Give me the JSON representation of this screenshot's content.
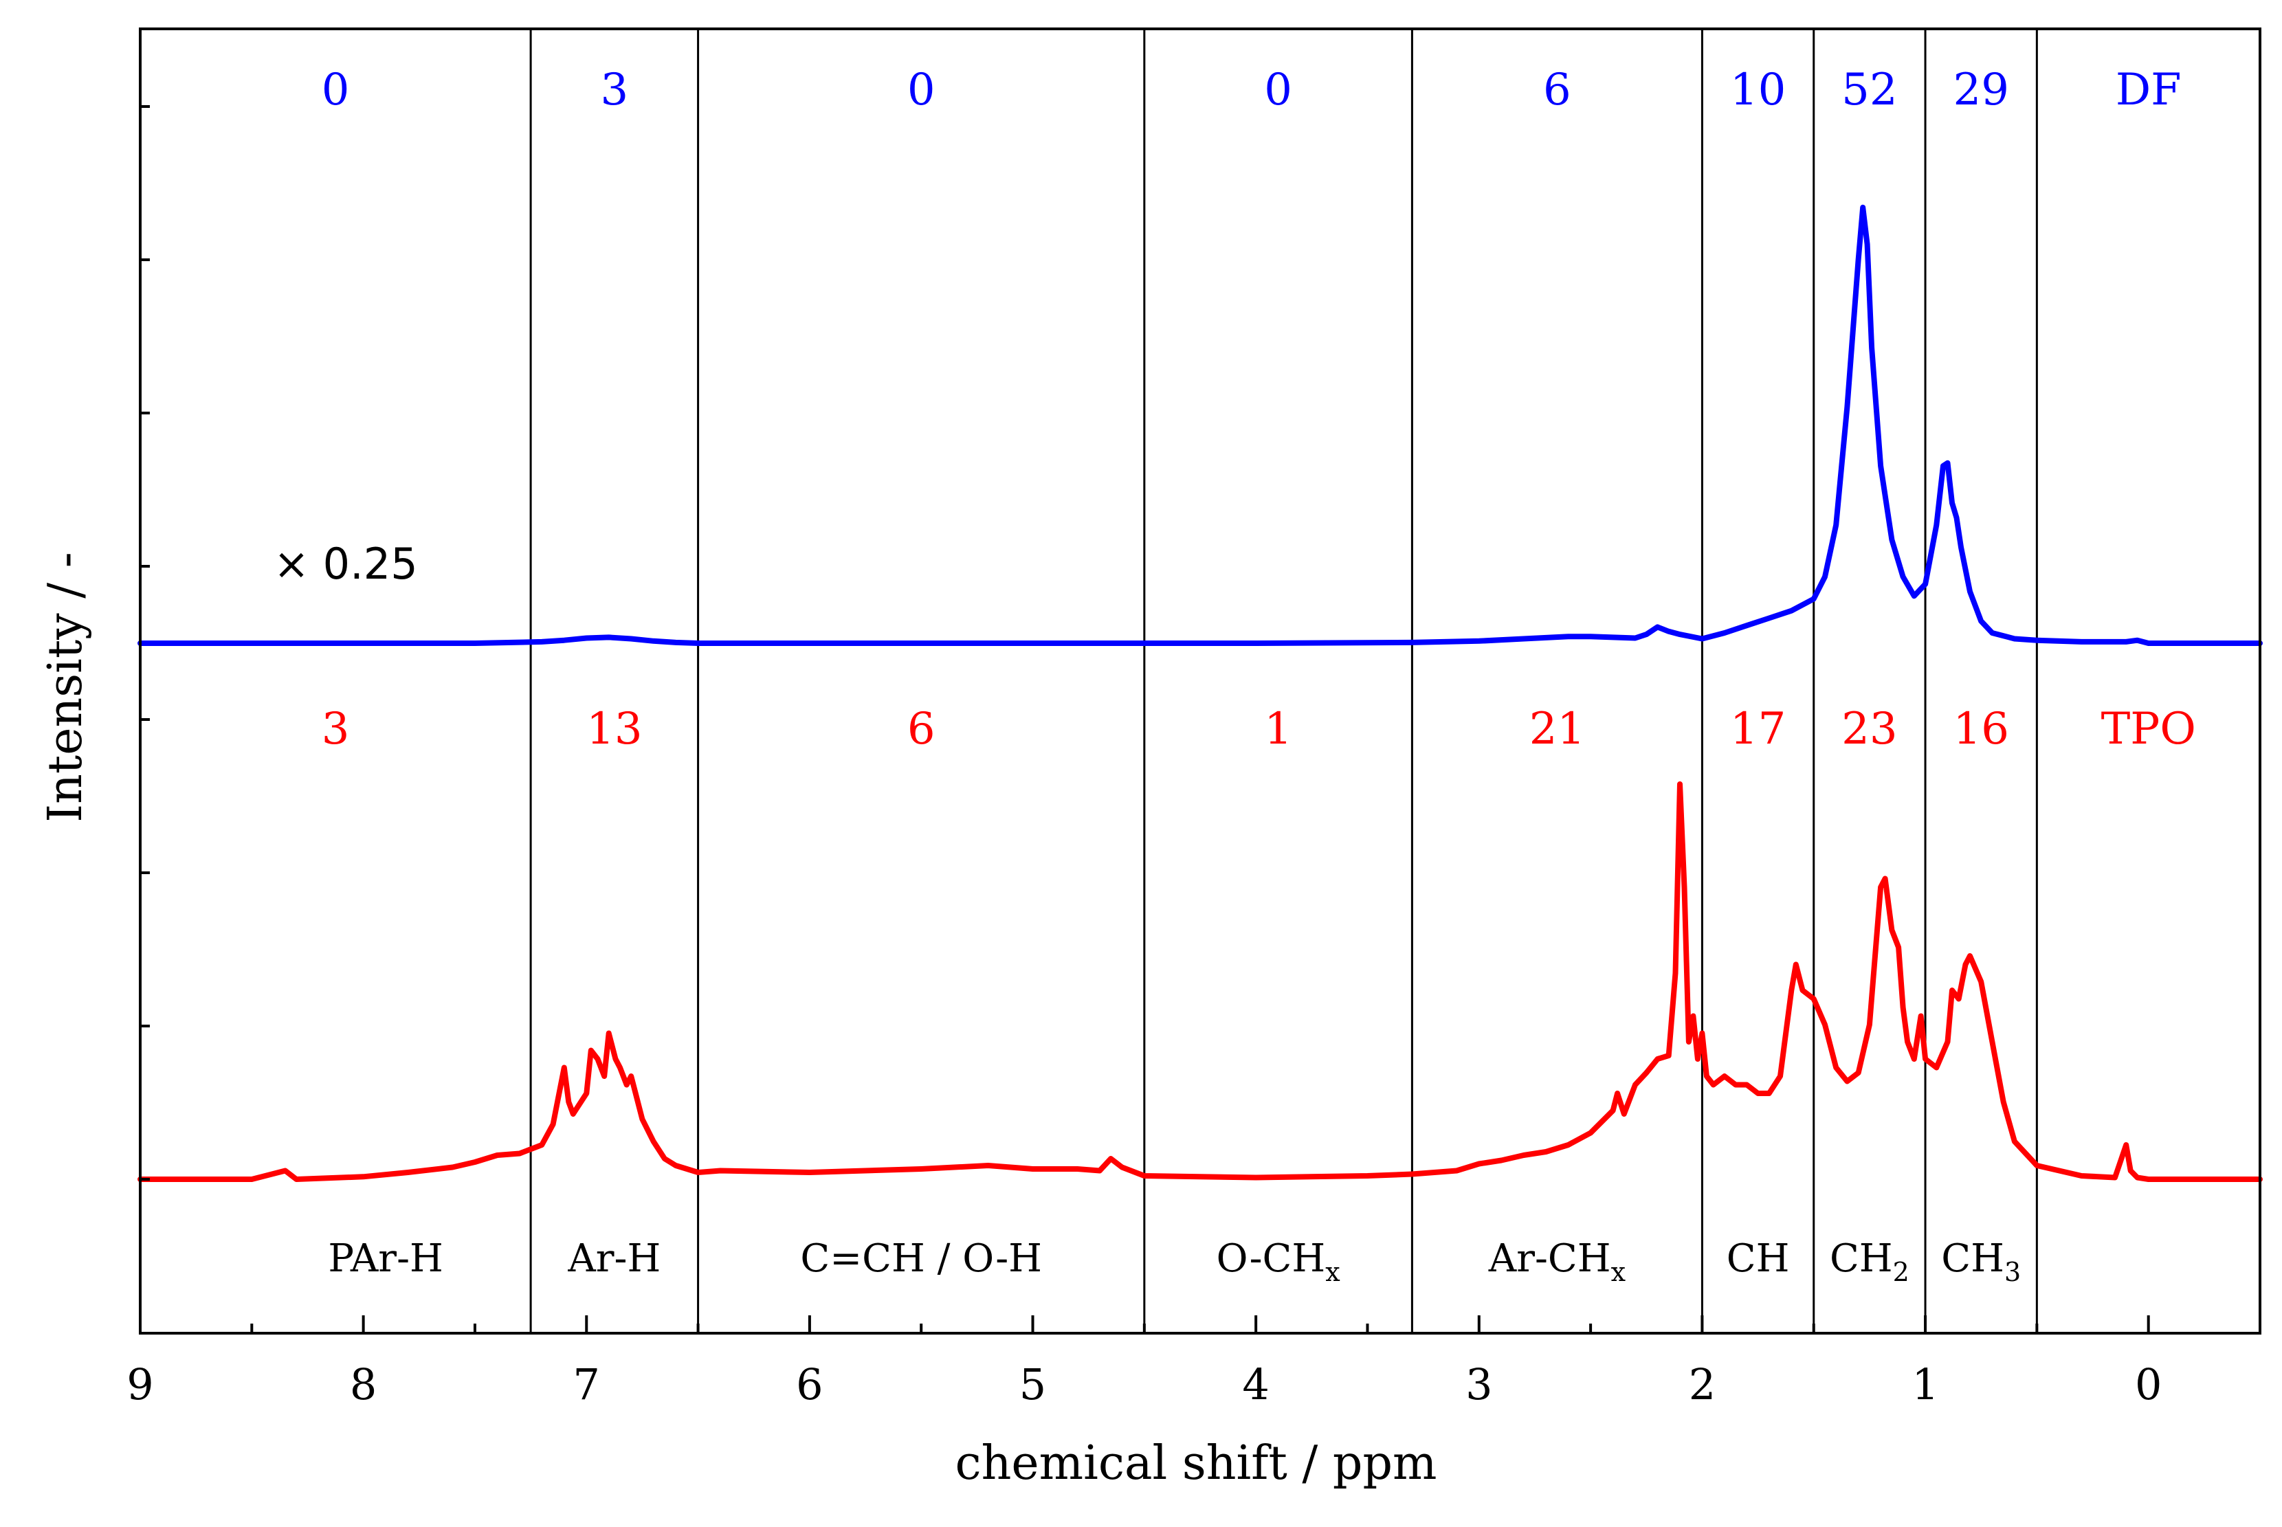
{
  "chart_data": {
    "type": "line",
    "xlabel": "chemical shift / ppm",
    "ylabel": "Intensity / -",
    "xlim": [
      9,
      -0.5
    ],
    "xticks": [
      "9",
      "8",
      "7",
      "6",
      "5",
      "4",
      "3",
      "2",
      "1",
      "0"
    ],
    "grid": false,
    "scale_note": "× 0.25",
    "region_boundaries_ppm": [
      7.25,
      6.5,
      4.5,
      3.3,
      2.0,
      1.5,
      1.0,
      0.5
    ],
    "regions": [
      {
        "label": "PAr-H",
        "center": 7.9
      },
      {
        "label": "Ar-H",
        "center": 6.85
      },
      {
        "label": "C=CH / O-H",
        "center": 5.5
      },
      {
        "label": "O-CH",
        "sub": "x",
        "center": 3.9
      },
      {
        "label": "Ar-CH",
        "sub": "x",
        "center": 2.65
      },
      {
        "label": "CH",
        "center": 1.75
      },
      {
        "label": "CH",
        "sub": "2",
        "center": 1.25
      },
      {
        "label": "CH",
        "sub": "3",
        "center": 0.75
      }
    ],
    "series": [
      {
        "name": "DF",
        "color": "#0000ff",
        "region_counts": [
          "0",
          "3",
          "0",
          "0",
          "6",
          "10",
          "52",
          "29"
        ],
        "x": [
          9.0,
          8.0,
          7.5,
          7.2,
          7.1,
          7.0,
          6.9,
          6.8,
          6.7,
          6.6,
          6.5,
          6.0,
          5.0,
          4.5,
          4.0,
          3.3,
          3.0,
          2.8,
          2.6,
          2.5,
          2.4,
          2.3,
          2.25,
          2.2,
          2.15,
          2.1,
          2.0,
          1.9,
          1.8,
          1.7,
          1.6,
          1.5,
          1.45,
          1.4,
          1.35,
          1.3,
          1.28,
          1.26,
          1.24,
          1.2,
          1.15,
          1.1,
          1.05,
          1.0,
          0.95,
          0.92,
          0.9,
          0.88,
          0.86,
          0.84,
          0.8,
          0.75,
          0.7,
          0.6,
          0.5,
          0.3,
          0.1,
          0.05,
          0.0,
          -0.5
        ],
        "y": [
          0,
          0,
          0,
          0.01,
          0.02,
          0.035,
          0.04,
          0.03,
          0.015,
          0.005,
          0,
          0,
          0,
          0,
          0,
          0.005,
          0.015,
          0.03,
          0.045,
          0.045,
          0.04,
          0.035,
          0.06,
          0.11,
          0.08,
          0.06,
          0.03,
          0.07,
          0.12,
          0.17,
          0.22,
          0.3,
          0.45,
          0.8,
          1.6,
          2.6,
          2.95,
          2.7,
          2.0,
          1.2,
          0.7,
          0.45,
          0.32,
          0.4,
          0.8,
          1.2,
          1.22,
          0.95,
          0.85,
          0.65,
          0.35,
          0.15,
          0.07,
          0.03,
          0.02,
          0.01,
          0.01,
          0.02,
          0.0,
          0.0
        ]
      },
      {
        "name": "TPO",
        "color": "#ff0000",
        "region_counts": [
          "3",
          "13",
          "6",
          "1",
          "21",
          "17",
          "23",
          "16"
        ],
        "x": [
          9.0,
          8.5,
          8.35,
          8.3,
          8.0,
          7.8,
          7.6,
          7.5,
          7.4,
          7.3,
          7.2,
          7.15,
          7.1,
          7.08,
          7.06,
          7.0,
          6.98,
          6.95,
          6.92,
          6.9,
          6.87,
          6.85,
          6.82,
          6.8,
          6.78,
          6.75,
          6.7,
          6.65,
          6.6,
          6.5,
          6.4,
          6.0,
          5.5,
          5.2,
          5.0,
          4.8,
          4.7,
          4.65,
          4.6,
          4.5,
          4.0,
          3.5,
          3.3,
          3.1,
          3.0,
          2.9,
          2.8,
          2.7,
          2.6,
          2.5,
          2.4,
          2.38,
          2.35,
          2.3,
          2.25,
          2.2,
          2.15,
          2.12,
          2.1,
          2.08,
          2.06,
          2.04,
          2.02,
          2.0,
          1.98,
          1.95,
          1.9,
          1.85,
          1.8,
          1.75,
          1.7,
          1.65,
          1.6,
          1.58,
          1.55,
          1.5,
          1.45,
          1.4,
          1.35,
          1.3,
          1.25,
          1.2,
          1.18,
          1.15,
          1.12,
          1.1,
          1.08,
          1.05,
          1.02,
          1.0,
          0.95,
          0.9,
          0.88,
          0.85,
          0.82,
          0.8,
          0.75,
          0.7,
          0.65,
          0.6,
          0.5,
          0.3,
          0.15,
          0.1,
          0.08,
          0.05,
          0.0,
          -0.5
        ],
        "y": [
          0,
          0,
          0.05,
          0,
          0.015,
          0.04,
          0.07,
          0.1,
          0.14,
          0.15,
          0.2,
          0.32,
          0.65,
          0.45,
          0.38,
          0.5,
          0.75,
          0.7,
          0.6,
          0.85,
          0.7,
          0.65,
          0.55,
          0.6,
          0.5,
          0.35,
          0.22,
          0.12,
          0.08,
          0.04,
          0.05,
          0.04,
          0.06,
          0.08,
          0.06,
          0.06,
          0.05,
          0.12,
          0.07,
          0.02,
          0.01,
          0.02,
          0.03,
          0.05,
          0.09,
          0.11,
          0.14,
          0.16,
          0.2,
          0.27,
          0.4,
          0.5,
          0.38,
          0.55,
          0.62,
          0.7,
          0.72,
          1.2,
          2.3,
          1.7,
          0.8,
          0.95,
          0.7,
          0.85,
          0.6,
          0.55,
          0.6,
          0.55,
          0.55,
          0.5,
          0.5,
          0.6,
          1.1,
          1.25,
          1.1,
          1.05,
          0.9,
          0.65,
          0.57,
          0.62,
          0.9,
          1.7,
          1.75,
          1.45,
          1.35,
          1.0,
          0.8,
          0.7,
          0.95,
          0.7,
          0.65,
          0.8,
          1.1,
          1.05,
          1.25,
          1.3,
          1.15,
          0.8,
          0.45,
          0.22,
          0.08,
          0.02,
          0.01,
          0.2,
          0.05,
          0.01,
          0.0,
          0.0
        ]
      }
    ]
  }
}
